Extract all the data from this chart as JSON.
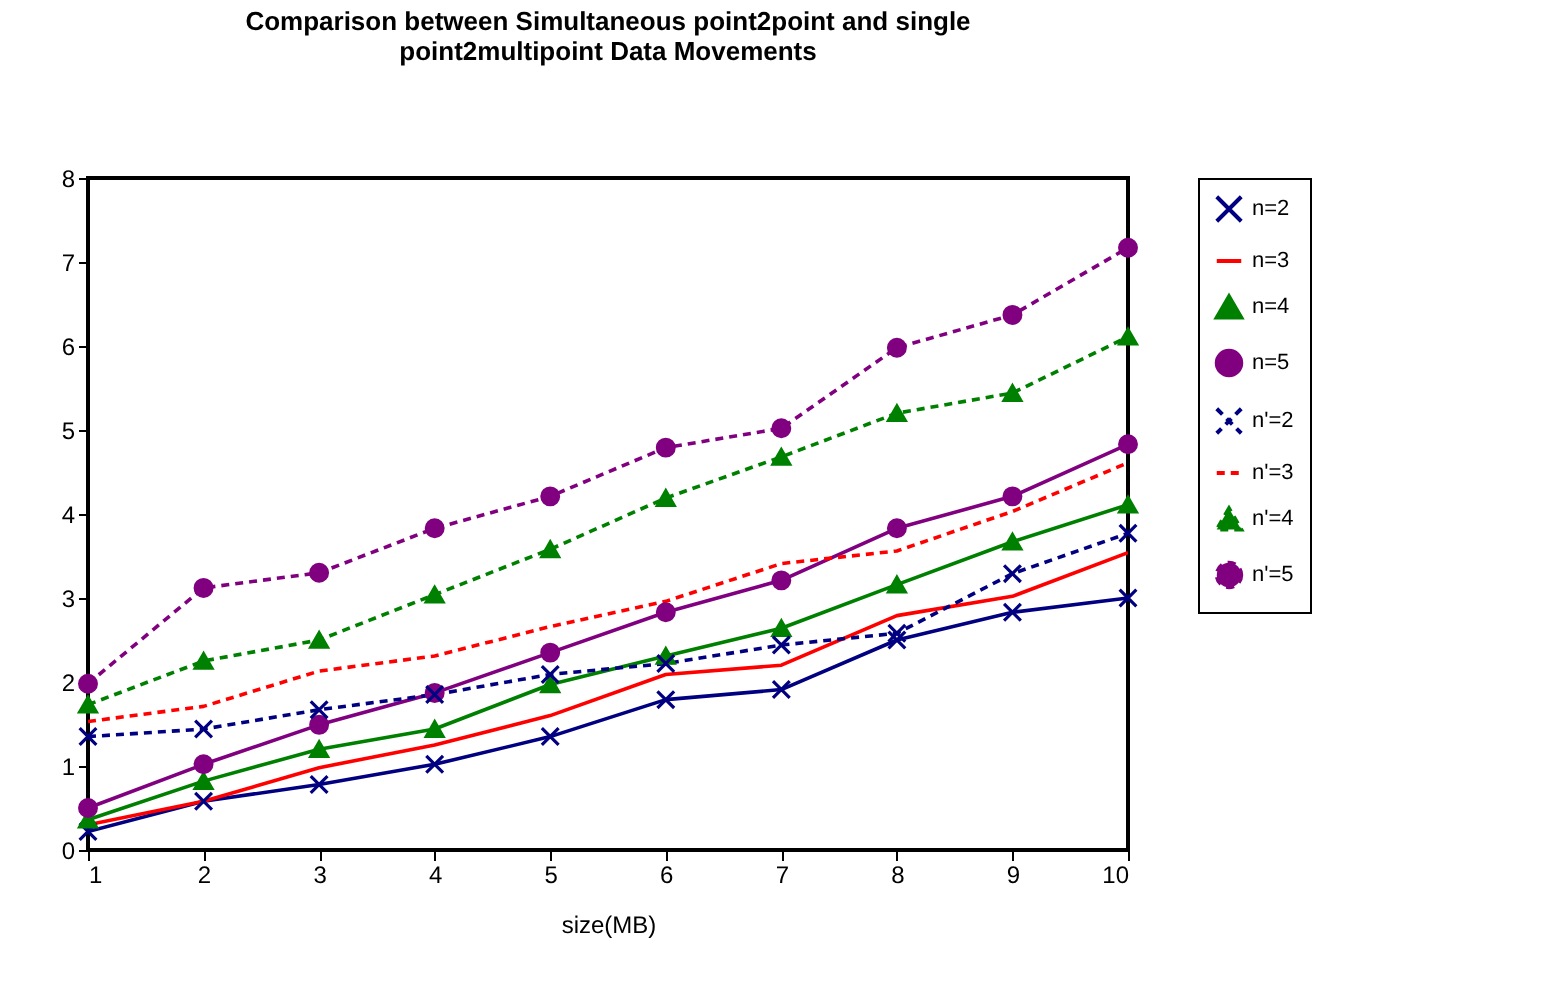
{
  "chart_data": {
    "type": "line",
    "title": "Comparison between Simultaneous point2point and single point2multipoint Data Movements",
    "xlabel": "size(MB)",
    "x": [
      1,
      2,
      3,
      4,
      5,
      6,
      7,
      8,
      9,
      10
    ],
    "xlim": [
      1,
      10
    ],
    "xticks": [
      1,
      2,
      3,
      4,
      5,
      6,
      7,
      8,
      9,
      10
    ],
    "ylim": [
      0,
      8
    ],
    "yticks": [
      0,
      1,
      2,
      3,
      4,
      5,
      6,
      7,
      8
    ],
    "grid": false,
    "legend": "right",
    "series": [
      {
        "name": "n=2",
        "color": "#000080",
        "marker": "cross",
        "line_style": "solid",
        "values": [
          0.22,
          0.58,
          0.78,
          1.02,
          1.35,
          1.79,
          1.91,
          2.5,
          2.83,
          3.0
        ]
      },
      {
        "name": "n=3",
        "color": "#ff0000",
        "marker": "none",
        "line_style": "solid",
        "values": [
          0.3,
          0.58,
          0.98,
          1.25,
          1.6,
          2.09,
          2.2,
          2.79,
          3.02,
          3.54
        ]
      },
      {
        "name": "n=4",
        "color": "#008000",
        "marker": "triangle",
        "line_style": "solid",
        "values": [
          0.36,
          0.82,
          1.2,
          1.44,
          1.97,
          2.31,
          2.64,
          3.16,
          3.67,
          4.11
        ]
      },
      {
        "name": "n=5",
        "color": "#800080",
        "marker": "circle",
        "line_style": "solid",
        "values": [
          0.5,
          1.02,
          1.49,
          1.87,
          2.35,
          2.83,
          3.21,
          3.83,
          4.21,
          4.83
        ]
      },
      {
        "name": "n'=2",
        "color": "#000080",
        "marker": "cross",
        "line_style": "dashed",
        "values": [
          1.35,
          1.44,
          1.67,
          1.85,
          2.09,
          2.22,
          2.44,
          2.58,
          3.29,
          3.77
        ]
      },
      {
        "name": "n'=3",
        "color": "#ff0000",
        "marker": "none",
        "line_style": "dashed",
        "values": [
          1.53,
          1.71,
          2.13,
          2.31,
          2.66,
          2.96,
          3.41,
          3.56,
          4.03,
          4.61
        ]
      },
      {
        "name": "n'=4",
        "color": "#008000",
        "marker": "triangle",
        "line_style": "dashed",
        "values": [
          1.73,
          2.25,
          2.5,
          3.04,
          3.58,
          4.19,
          4.68,
          5.2,
          5.44,
          6.11
        ]
      },
      {
        "name": "n'=5",
        "color": "#800080",
        "marker": "circle",
        "line_style": "dashed",
        "values": [
          1.98,
          3.12,
          3.3,
          3.83,
          4.21,
          4.79,
          5.02,
          5.98,
          6.37,
          7.17
        ]
      }
    ]
  }
}
